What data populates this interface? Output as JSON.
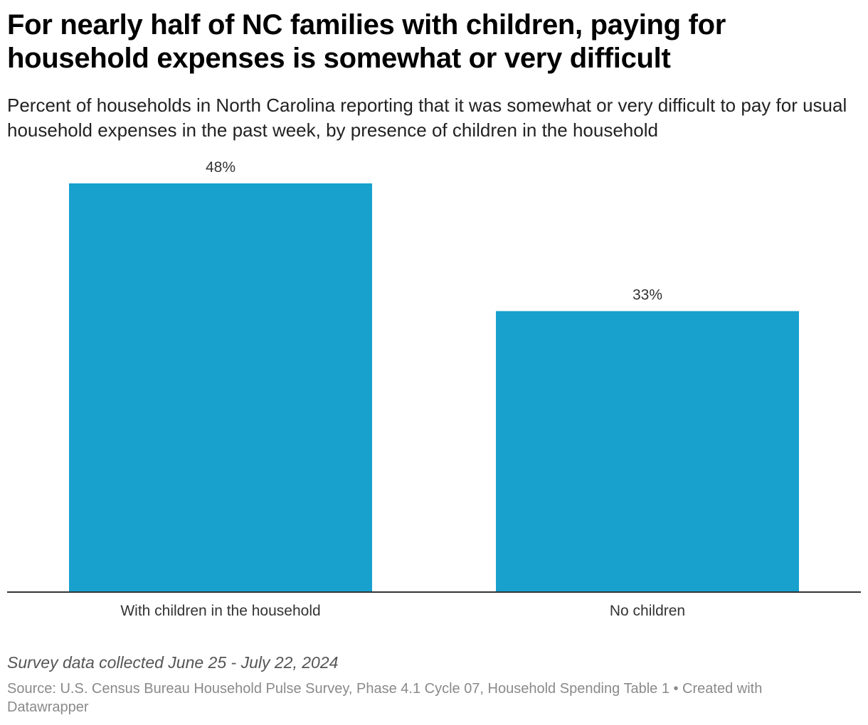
{
  "colors": {
    "bar": "#18a1cd",
    "axis": "#333333",
    "value_label": "#333333",
    "category_label": "#333333"
  },
  "chart_data": {
    "type": "bar",
    "title": "For nearly half of NC families with children, paying for household expenses is somewhat or very difficult",
    "subtitle": "Percent of households in North Carolina reporting that it was somewhat or very difficult to pay for usual household expenses in the past week, by presence of children in the household",
    "categories": [
      "With children in the household",
      "No children"
    ],
    "values": [
      48,
      33
    ],
    "value_labels": [
      "48%",
      "33%"
    ],
    "xlabel": "",
    "ylabel": "",
    "ylim": [
      0,
      48
    ],
    "grid": false,
    "legend": "none"
  },
  "footer": {
    "note": "Survey data collected June 25 - July 22, 2024",
    "source": "Source: U.S. Census Bureau Household Pulse Survey, Phase 4.1 Cycle 07, Household Spending Table 1 • Created with Datawrapper"
  }
}
